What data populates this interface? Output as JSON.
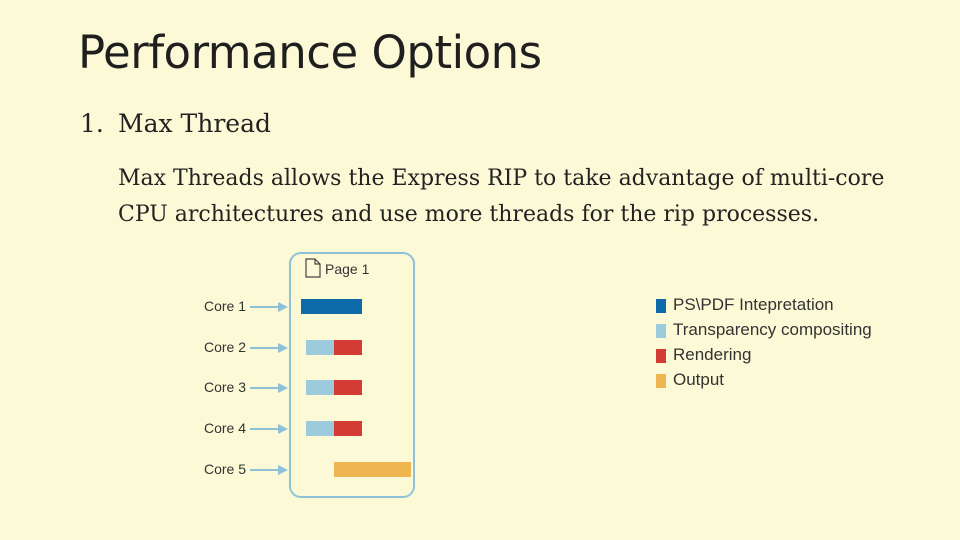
{
  "slide": {
    "title": "Performance Options",
    "item_number": "1.",
    "item_title": "Max Thread",
    "body": "Max Threads allows the Express RIP to take advantage of multi-core CPU architectures and use more threads for the rip processes."
  },
  "diagram": {
    "page_label": "Page 1",
    "cores": [
      {
        "label": "Core  1",
        "segments": [
          "ps_pdf"
        ]
      },
      {
        "label": "Core  2",
        "segments": [
          "transparency",
          "rendering"
        ]
      },
      {
        "label": "Core  3",
        "segments": [
          "transparency",
          "rendering"
        ]
      },
      {
        "label": "Core  4",
        "segments": [
          "transparency",
          "rendering"
        ]
      },
      {
        "label": "Core  5",
        "segments": [
          "output"
        ]
      }
    ],
    "legend": [
      {
        "label": "PS\\PDF Intepretation",
        "color": "#0d6aa8"
      },
      {
        "label": "Transparency compositing",
        "color": "#9ccbdd"
      },
      {
        "label": "Rendering",
        "color": "#d43b35"
      },
      {
        "label": "Output",
        "color": "#eeb550"
      }
    ],
    "colors": {
      "arrow": "#8ec1d9",
      "page_border": "#8ec1d9"
    }
  }
}
